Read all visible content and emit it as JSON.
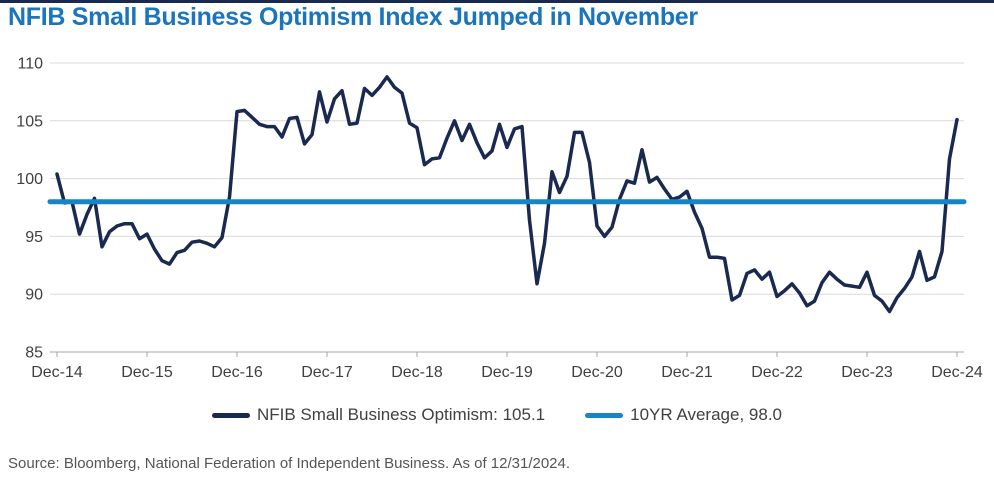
{
  "header": {
    "title": "NFIB Small Business Optimism Index Jumped in November"
  },
  "legend": {
    "items": [
      {
        "label": "NFIB Small Business Optimism: 105.1",
        "color": "#19294F"
      },
      {
        "label": "10YR Average, 98.0",
        "color": "#1784C5"
      }
    ]
  },
  "footer": {
    "source": "Source: Bloomberg, National Federation of Independent Business. As of 12/31/2024."
  },
  "colors": {
    "title_blue": "#1B75BC",
    "navy": "#19294F",
    "light_blue": "#1784C5"
  },
  "chart_data": {
    "type": "line",
    "title": "NFIB Small Business Optimism Index Jumped in November",
    "xlabel": "",
    "ylabel": "",
    "ylim": [
      85,
      110
    ],
    "y_ticks": [
      85,
      90,
      95,
      100,
      105,
      110
    ],
    "x_tick_labels": [
      "Dec-14",
      "Dec-15",
      "Dec-16",
      "Dec-17",
      "Dec-18",
      "Dec-19",
      "Dec-20",
      "Dec-21",
      "Dec-22",
      "Dec-23",
      "Dec-24"
    ],
    "x_frequency": "monthly",
    "grid": "horizontal",
    "legend_position": "bottom",
    "series": [
      {
        "name": "NFIB Small Business Optimism",
        "color": "#19294F",
        "last_value": 105.1,
        "values": [
          100.4,
          97.9,
          98.0,
          95.2,
          96.9,
          98.3,
          94.1,
          95.4,
          95.9,
          96.1,
          96.1,
          94.8,
          95.2,
          93.9,
          92.9,
          92.6,
          93.6,
          93.8,
          94.5,
          94.6,
          94.4,
          94.1,
          94.9,
          98.4,
          105.8,
          105.9,
          105.3,
          104.7,
          104.5,
          104.5,
          103.6,
          105.2,
          105.3,
          103.0,
          103.8,
          107.5,
          104.9,
          106.9,
          107.6,
          104.7,
          104.8,
          107.8,
          107.2,
          107.9,
          108.8,
          107.9,
          107.4,
          104.8,
          104.4,
          101.2,
          101.7,
          101.8,
          103.5,
          105.0,
          103.3,
          104.7,
          103.1,
          101.8,
          102.4,
          104.7,
          102.7,
          104.3,
          104.5,
          96.4,
          90.9,
          94.4,
          100.6,
          98.8,
          100.2,
          104.0,
          104.0,
          101.4,
          95.9,
          95.0,
          95.8,
          98.2,
          99.8,
          99.6,
          102.5,
          99.7,
          100.1,
          99.1,
          98.2,
          98.4,
          98.9,
          97.1,
          95.7,
          93.2,
          93.2,
          93.1,
          89.5,
          89.9,
          91.8,
          92.1,
          91.3,
          91.9,
          89.8,
          90.3,
          90.9,
          90.1,
          89.0,
          89.4,
          91.0,
          91.9,
          91.3,
          90.8,
          90.7,
          90.6,
          91.9,
          89.9,
          89.4,
          88.5,
          89.7,
          90.5,
          91.5,
          93.7,
          91.2,
          91.5,
          93.7,
          101.7,
          105.1
        ]
      },
      {
        "name": "10YR Average",
        "type": "hline",
        "color": "#1784C5",
        "value": 98.0
      }
    ]
  }
}
